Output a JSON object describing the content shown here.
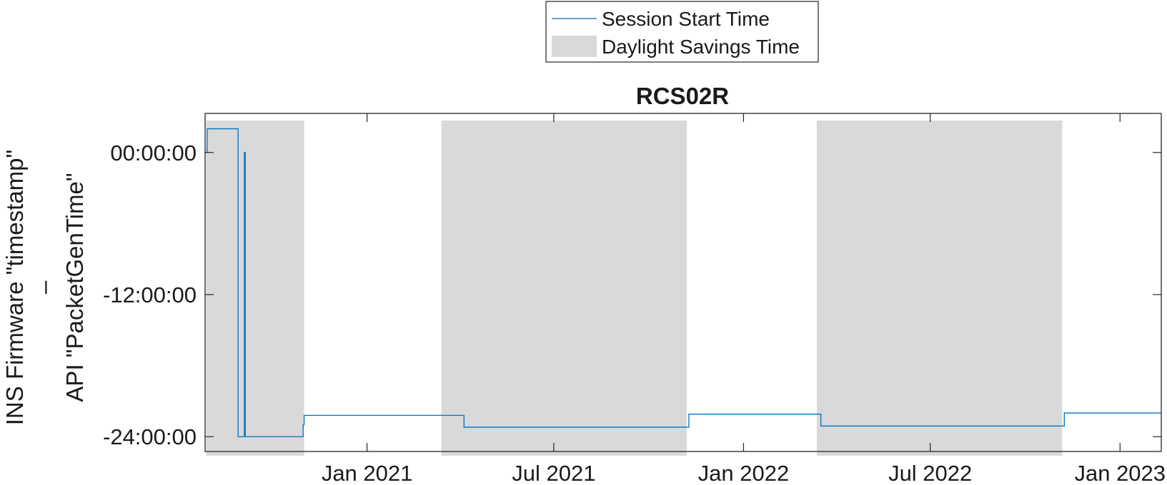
{
  "chart_data": {
    "type": "line",
    "title": "RCS02R",
    "xlabel": "",
    "ylabel": [
      "INS Firmware \"timestamp\"",
      "–",
      "API \"PacketGenTime\""
    ],
    "xlim": [
      "2020-07-28",
      "2023-02-10"
    ],
    "ylim": [
      -25.25,
      3.3
    ],
    "xticks": [
      {
        "date": "2021-01-01",
        "label": "Jan 2021"
      },
      {
        "date": "2021-07-01",
        "label": "Jul 2021"
      },
      {
        "date": "2022-01-01",
        "label": "Jan 2022"
      },
      {
        "date": "2022-07-01",
        "label": "Jul 2022"
      },
      {
        "date": "2023-01-01",
        "label": "Jan 2023"
      }
    ],
    "yticks": [
      {
        "value": 0,
        "label": "00:00:00"
      },
      {
        "value": -12,
        "label": "-12:00:00"
      },
      {
        "value": -24,
        "label": "-24:00:00"
      }
    ],
    "grid": false,
    "legend_position": "top-center, outside axes",
    "series": [
      {
        "name": "Session Start Time",
        "color": "#0072BD",
        "points": [
          {
            "x": "2020-07-28",
            "y": 0
          },
          {
            "x": "2020-07-30",
            "y": 0
          },
          {
            "x": "2020-07-30",
            "y": 2
          },
          {
            "x": "2020-08-29",
            "y": 2
          },
          {
            "x": "2020-08-29",
            "y": -24
          },
          {
            "x": "2020-09-04",
            "y": -24
          },
          {
            "x": "2020-09-04",
            "y": 0
          },
          {
            "x": "2020-09-05",
            "y": 0
          },
          {
            "x": "2020-09-05",
            "y": -24
          },
          {
            "x": "2020-10-31",
            "y": -24
          },
          {
            "x": "2020-10-31",
            "y": -23
          },
          {
            "x": "2020-11-01",
            "y": -23
          },
          {
            "x": "2020-11-01",
            "y": -22.2
          },
          {
            "x": "2021-04-05",
            "y": -22.2
          },
          {
            "x": "2021-04-05",
            "y": -23.2
          },
          {
            "x": "2021-11-09",
            "y": -23.2
          },
          {
            "x": "2021-11-09",
            "y": -22.1
          },
          {
            "x": "2022-03-17",
            "y": -22.1
          },
          {
            "x": "2022-03-17",
            "y": -23.1
          },
          {
            "x": "2022-11-08",
            "y": -23.1
          },
          {
            "x": "2022-11-08",
            "y": -22
          },
          {
            "x": "2023-02-10",
            "y": -22
          }
        ]
      }
    ],
    "shaded_regions": {
      "name": "Daylight Savings Time",
      "color": "#d9d9d9",
      "y_range": [
        -25.6,
        2.7
      ],
      "periods": [
        {
          "start": "2020-07-29",
          "end": "2020-11-01"
        },
        {
          "start": "2021-03-14",
          "end": "2021-11-07"
        },
        {
          "start": "2022-03-13",
          "end": "2022-11-06"
        }
      ]
    },
    "legend": [
      {
        "label": "Session Start Time",
        "kind": "line",
        "color": "#0072BD"
      },
      {
        "label": "Daylight Savings Time",
        "kind": "patch",
        "color": "#d9d9d9"
      }
    ]
  }
}
